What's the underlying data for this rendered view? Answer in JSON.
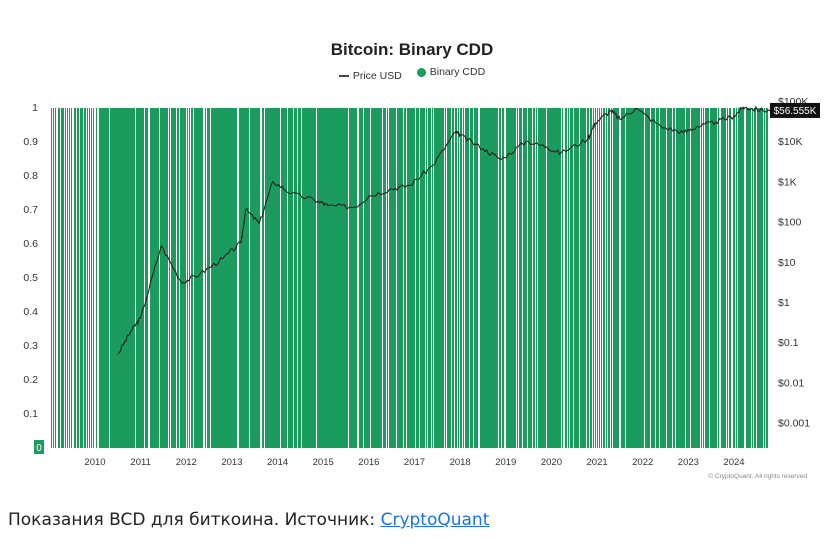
{
  "chart_data": {
    "type": "line",
    "title": "Bitcoin: Binary CDD",
    "legend": [
      {
        "name": "Price USD",
        "kind": "line",
        "color": "#444444"
      },
      {
        "name": "Binary CDD",
        "kind": "dot",
        "color": "#1c9b5e"
      }
    ],
    "x_ticks": [
      "2010",
      "2011",
      "2012",
      "2013",
      "2014",
      "2015",
      "2016",
      "2017",
      "2018",
      "2019",
      "2020",
      "2021",
      "2022",
      "2023",
      "2024"
    ],
    "y_left_ticks": [
      "1",
      "0.9",
      "0.8",
      "0.7",
      "0.6",
      "0.5",
      "0.4",
      "0.3",
      "0.2",
      "0.1"
    ],
    "y_left_zero_label": "0",
    "y_left_range": [
      0,
      1
    ],
    "y_right_ticks": [
      "$100K",
      "$10K",
      "$1K",
      "$100",
      "$10",
      "$1",
      "$0.1",
      "$0.01",
      "$0.001"
    ],
    "y_right_scale": "log",
    "last_price_label": "$56.555K",
    "watermark": "© CryptoQuant. All rights reserved",
    "series": [
      {
        "name": "Price USD",
        "x": [
          2010.5,
          2010.8,
          2011.0,
          2011.45,
          2011.9,
          2012.3,
          2012.8,
          2013.2,
          2013.3,
          2013.6,
          2013.9,
          2014.3,
          2014.9,
          2015.1,
          2015.7,
          2016.0,
          2016.5,
          2016.9,
          2017.4,
          2017.9,
          2018.0,
          2018.5,
          2018.9,
          2019.45,
          2019.9,
          2020.2,
          2020.8,
          2020.95,
          2021.3,
          2021.5,
          2021.85,
          2022.4,
          2022.9,
          2023.2,
          2023.6,
          2024.0,
          2024.2,
          2024.4,
          2024.8
        ],
        "y": [
          0.05,
          0.2,
          0.4,
          25,
          3,
          5,
          12,
          30,
          200,
          90,
          1000,
          500,
          320,
          250,
          230,
          430,
          650,
          800,
          2500,
          17000,
          14000,
          6500,
          3500,
          10000,
          7200,
          5000,
          11500,
          28000,
          58000,
          35000,
          66000,
          23000,
          16500,
          23000,
          30000,
          42000,
          70000,
          64000,
          56555
        ]
      },
      {
        "name": "Binary CDD",
        "values_note_free": true,
        "y_range": [
          0,
          1
        ]
      }
    ]
  },
  "caption": {
    "text": "Показания BCD для биткоина. Источник: ",
    "link": "CryptoQuant"
  }
}
